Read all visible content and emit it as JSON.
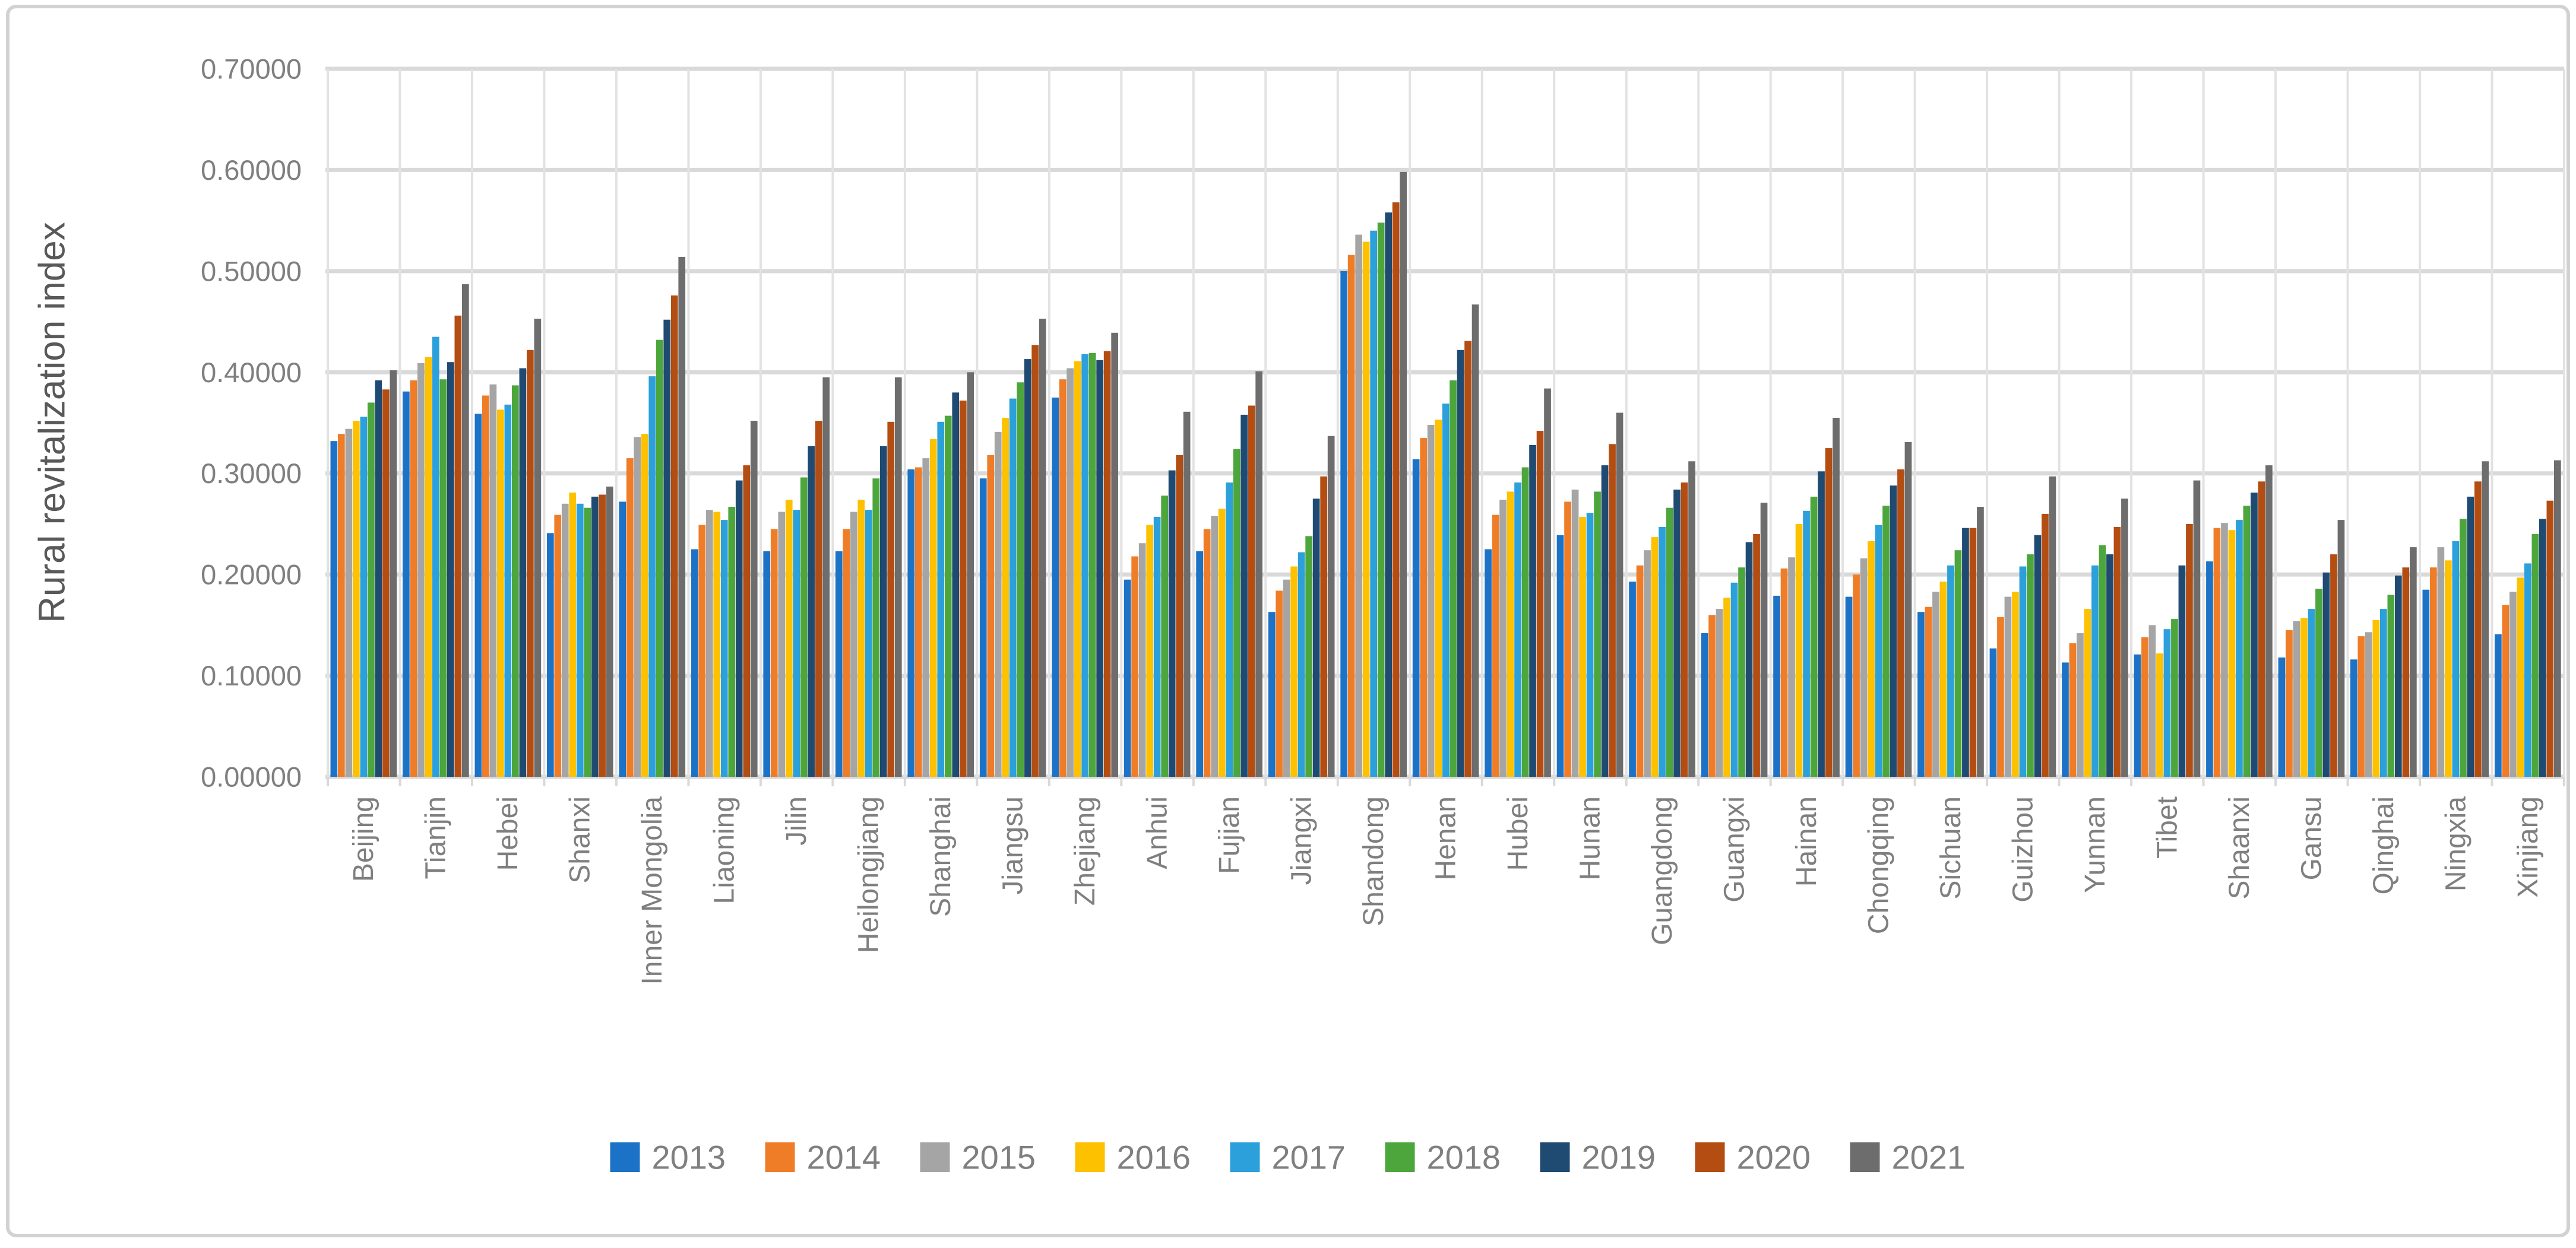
{
  "chart_data": {
    "type": "bar",
    "title": "",
    "xlabel": "",
    "ylabel": "Rural revitalization index",
    "ylim": [
      0,
      0.7
    ],
    "ytick_step": 0.1,
    "ytick_labels": [
      "0.00000",
      "0.10000",
      "0.20000",
      "0.30000",
      "0.40000",
      "0.50000",
      "0.60000",
      "0.70000"
    ],
    "grid": true,
    "legend_position": "bottom",
    "grid_color": "#D9D9D9",
    "axis_text_color": "#7F7F7F",
    "axis_title_color": "#595959",
    "categories": [
      "Beijing",
      "Tianjin",
      "Hebei",
      "Shanxi",
      "Inner Mongolia",
      "Liaoning",
      "Jilin",
      "Heilongjiang",
      "Shanghai",
      "Jiangsu",
      "Zhejiang",
      "Anhui",
      "Fujian",
      "Jiangxi",
      "Shandong",
      "Henan",
      "Hubei",
      "Hunan",
      "Guangdong",
      "Guangxi",
      "Hainan",
      "Chongqing",
      "Sichuan",
      "Guizhou",
      "Yunnan",
      "Tibet",
      "Shaanxi",
      "Gansu",
      "Qinghai",
      "Ningxia",
      "Xinjiang"
    ],
    "series": [
      {
        "name": "2013",
        "color": "#1C72C6",
        "values": [
          0.332,
          0.381,
          0.359,
          0.241,
          0.272,
          0.225,
          0.223,
          0.223,
          0.304,
          0.295,
          0.375,
          0.195,
          0.223,
          0.163,
          0.5,
          0.314,
          0.225,
          0.239,
          0.193,
          0.142,
          0.179,
          0.178,
          0.163,
          0.127,
          0.113,
          0.121,
          0.213,
          0.118,
          0.116,
          0.185,
          0.141
        ]
      },
      {
        "name": "2014",
        "color": "#EF7D28",
        "values": [
          0.339,
          0.392,
          0.377,
          0.259,
          0.315,
          0.249,
          0.245,
          0.245,
          0.306,
          0.318,
          0.393,
          0.218,
          0.245,
          0.184,
          0.516,
          0.335,
          0.259,
          0.272,
          0.209,
          0.16,
          0.206,
          0.2,
          0.168,
          0.158,
          0.132,
          0.138,
          0.246,
          0.145,
          0.139,
          0.207,
          0.17
        ]
      },
      {
        "name": "2015",
        "color": "#A5A5A5",
        "values": [
          0.344,
          0.409,
          0.388,
          0.27,
          0.336,
          0.264,
          0.262,
          0.262,
          0.315,
          0.341,
          0.404,
          0.231,
          0.258,
          0.195,
          0.536,
          0.348,
          0.274,
          0.284,
          0.224,
          0.166,
          0.217,
          0.216,
          0.183,
          0.178,
          0.142,
          0.15,
          0.251,
          0.154,
          0.143,
          0.227,
          0.183
        ]
      },
      {
        "name": "2016",
        "color": "#FDC100",
        "values": [
          0.352,
          0.415,
          0.363,
          0.281,
          0.339,
          0.262,
          0.274,
          0.274,
          0.334,
          0.355,
          0.411,
          0.249,
          0.265,
          0.208,
          0.529,
          0.353,
          0.282,
          0.257,
          0.237,
          0.177,
          0.25,
          0.233,
          0.193,
          0.183,
          0.166,
          0.122,
          0.244,
          0.157,
          0.155,
          0.214,
          0.197
        ]
      },
      {
        "name": "2017",
        "color": "#2BA0DB",
        "values": [
          0.356,
          0.435,
          0.368,
          0.27,
          0.396,
          0.254,
          0.264,
          0.264,
          0.351,
          0.374,
          0.418,
          0.257,
          0.291,
          0.222,
          0.54,
          0.369,
          0.291,
          0.261,
          0.247,
          0.192,
          0.263,
          0.249,
          0.209,
          0.208,
          0.209,
          0.146,
          0.254,
          0.166,
          0.166,
          0.233,
          0.211
        ]
      },
      {
        "name": "2018",
        "color": "#4CA63C",
        "values": [
          0.37,
          0.393,
          0.387,
          0.266,
          0.432,
          0.267,
          0.296,
          0.295,
          0.357,
          0.39,
          0.419,
          0.278,
          0.324,
          0.238,
          0.548,
          0.392,
          0.306,
          0.282,
          0.266,
          0.207,
          0.277,
          0.268,
          0.224,
          0.22,
          0.229,
          0.156,
          0.268,
          0.186,
          0.18,
          0.255,
          0.24
        ]
      },
      {
        "name": "2019",
        "color": "#1F4B73",
        "values": [
          0.392,
          0.41,
          0.404,
          0.277,
          0.452,
          0.293,
          0.327,
          0.327,
          0.38,
          0.413,
          0.412,
          0.303,
          0.358,
          0.275,
          0.558,
          0.422,
          0.328,
          0.308,
          0.284,
          0.232,
          0.302,
          0.288,
          0.246,
          0.239,
          0.22,
          0.209,
          0.281,
          0.202,
          0.199,
          0.277,
          0.255
        ]
      },
      {
        "name": "2020",
        "color": "#B44D12",
        "values": [
          0.383,
          0.456,
          0.422,
          0.279,
          0.476,
          0.308,
          0.352,
          0.351,
          0.372,
          0.427,
          0.421,
          0.318,
          0.367,
          0.297,
          0.568,
          0.431,
          0.342,
          0.329,
          0.291,
          0.24,
          0.325,
          0.304,
          0.246,
          0.26,
          0.247,
          0.25,
          0.292,
          0.22,
          0.207,
          0.292,
          0.273
        ]
      },
      {
        "name": "2021",
        "color": "#6D6D6D",
        "values": [
          0.402,
          0.487,
          0.453,
          0.287,
          0.514,
          0.352,
          0.395,
          0.395,
          0.4,
          0.453,
          0.439,
          0.361,
          0.401,
          0.337,
          0.598,
          0.467,
          0.384,
          0.36,
          0.312,
          0.271,
          0.355,
          0.331,
          0.267,
          0.297,
          0.275,
          0.293,
          0.308,
          0.254,
          0.227,
          0.312,
          0.313
        ]
      }
    ]
  },
  "frame": {
    "border_color": "#D2D2D2",
    "background": "#FFFFFF"
  }
}
